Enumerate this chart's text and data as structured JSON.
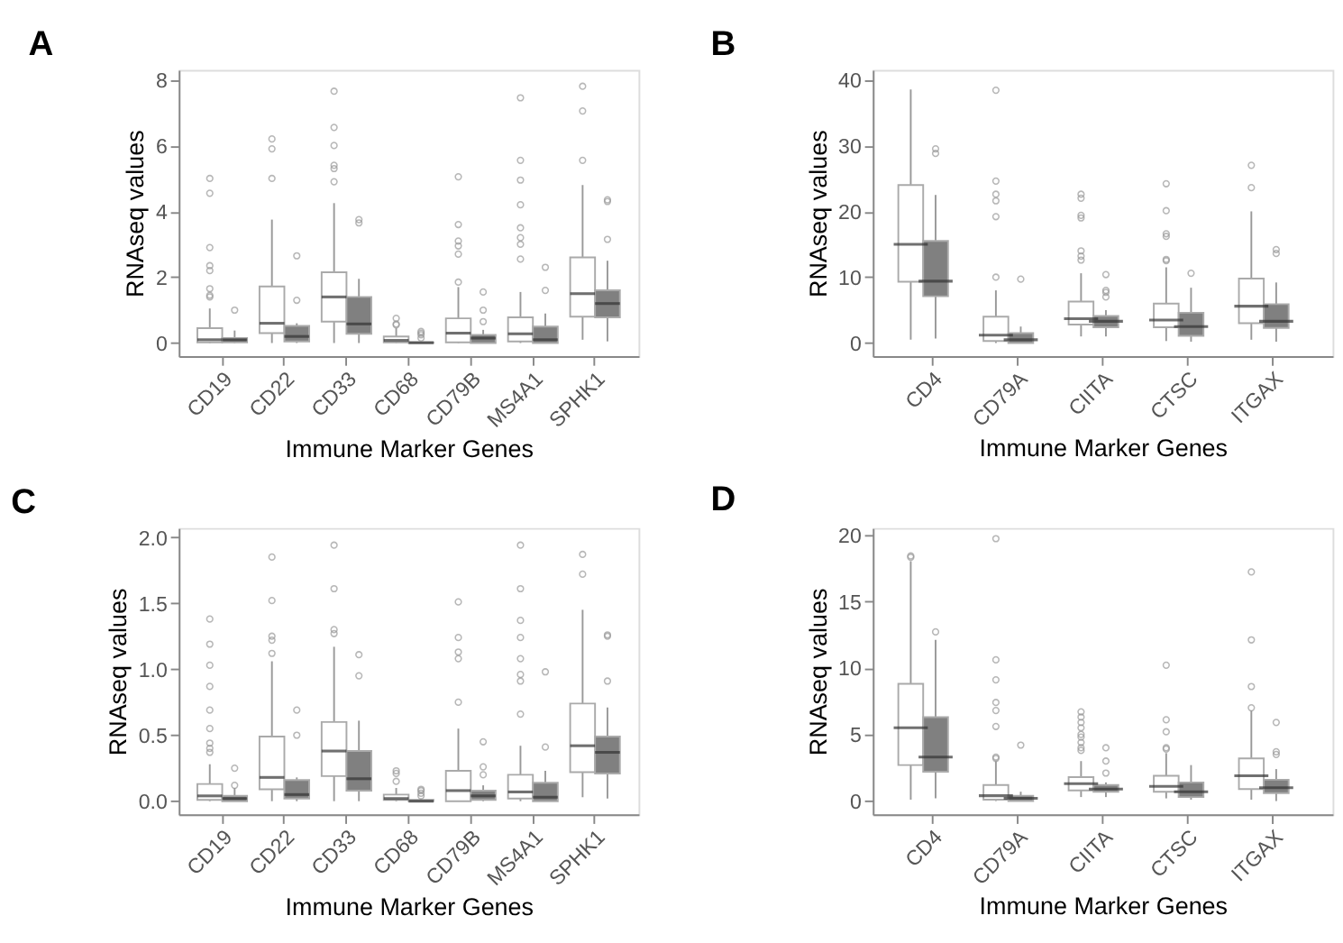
{
  "chart_data": [
    {
      "type": "box",
      "title": "A",
      "xlabel": "Immune Marker Genes",
      "ylabel": "RNAseq values",
      "categories": [
        "CD19",
        "CD22",
        "CD33",
        "CD68",
        "CD79B",
        "MS4A1",
        "SPHK1"
      ],
      "ylim": [
        -0.4,
        8.3
      ],
      "yticks": [
        0,
        2,
        4,
        6,
        8
      ],
      "grid": false,
      "legend": false,
      "series": [
        {
          "color": "#ffffff",
          "boxes": [
            {
              "low": 0,
              "q1": 0.02,
              "median": 0.1,
              "q3": 0.45,
              "high": 1.05,
              "outliers": [
                1.4,
                1.45,
                1.65,
                2.2,
                2.35,
                2.9,
                4.55,
                5.0
              ]
            },
            {
              "low": 0,
              "q1": 0.3,
              "median": 0.6,
              "q3": 1.72,
              "high": 3.75,
              "outliers": [
                5.0,
                5.9,
                6.2
              ]
            },
            {
              "low": 0,
              "q1": 0.65,
              "median": 1.4,
              "q3": 2.15,
              "high": 4.25,
              "outliers": [
                4.9,
                5.3,
                5.4,
                6.0,
                6.55,
                7.65
              ]
            },
            {
              "low": 0,
              "q1": 0.02,
              "median": 0.08,
              "q3": 0.2,
              "high": 0.45,
              "outliers": [
                0.55,
                0.58,
                0.75
              ]
            },
            {
              "low": 0,
              "q1": 0.02,
              "median": 0.3,
              "q3": 0.75,
              "high": 1.7,
              "outliers": [
                1.85,
                2.7,
                2.95,
                3.1,
                3.6,
                5.05
              ]
            },
            {
              "low": 0,
              "q1": 0.05,
              "median": 0.28,
              "q3": 0.78,
              "high": 1.55,
              "outliers": [
                2.55,
                3.0,
                3.2,
                3.5,
                4.2,
                4.95,
                5.55,
                7.45
              ]
            },
            {
              "low": 0.1,
              "q1": 0.8,
              "median": 1.5,
              "q3": 2.6,
              "high": 4.8,
              "outliers": [
                5.55,
                7.05,
                7.8
              ]
            }
          ]
        },
        {
          "color": "#808080",
          "boxes": [
            {
              "low": 0,
              "q1": 0.02,
              "median": 0.1,
              "q3": 0.15,
              "high": 0.38,
              "outliers": [
                1.0
              ]
            },
            {
              "low": 0,
              "q1": 0.05,
              "median": 0.2,
              "q3": 0.52,
              "high": 0.6,
              "outliers": [
                1.3,
                2.65
              ]
            },
            {
              "low": 0,
              "q1": 0.28,
              "median": 0.58,
              "q3": 1.4,
              "high": 1.95,
              "outliers": [
                3.65,
                3.75
              ]
            },
            {
              "low": 0,
              "q1": 0,
              "median": 0.01,
              "q3": 0.02,
              "high": 0.05,
              "outliers": [
                0.15,
                0.25,
                0.3,
                0.35
              ]
            },
            {
              "low": 0,
              "q1": 0,
              "median": 0.15,
              "q3": 0.25,
              "high": 0.4,
              "outliers": [
                0.65,
                1.0,
                1.55
              ]
            },
            {
              "low": 0,
              "q1": 0,
              "median": 0.1,
              "q3": 0.5,
              "high": 0.9,
              "outliers": [
                1.6,
                2.3
              ]
            },
            {
              "low": 0.05,
              "q1": 0.78,
              "median": 1.2,
              "q3": 1.6,
              "high": 2.5,
              "outliers": [
                3.15,
                4.3,
                4.35
              ]
            }
          ]
        }
      ]
    },
    {
      "type": "box",
      "title": "B",
      "xlabel": "Immune Marker Genes",
      "ylabel": "RNAseq values",
      "categories": [
        "CD4",
        "CD79A",
        "CIITA",
        "CTSC",
        "ITGAX"
      ],
      "ylim": [
        -2,
        41.5
      ],
      "yticks": [
        0,
        10,
        20,
        30,
        40
      ],
      "grid": false,
      "legend": false,
      "series": [
        {
          "color": "#ffffff",
          "boxes": [
            {
              "low": 0.5,
              "q1": 9.3,
              "median": 15,
              "q3": 24,
              "high": 38.5
            },
            {
              "low": 0,
              "q1": 0.3,
              "median": 1.2,
              "q3": 4,
              "high": 8,
              "outliers": [
                10,
                19.2,
                21.6,
                22.6,
                24.6,
                38.4
              ]
            },
            {
              "low": 1,
              "q1": 2.8,
              "median": 3.7,
              "q3": 6.3,
              "high": 10.6,
              "outliers": [
                12.6,
                13.2,
                14,
                19,
                19.4,
                22,
                22.6
              ]
            },
            {
              "low": 0.3,
              "q1": 2.4,
              "median": 3.5,
              "q3": 6,
              "high": 11.5,
              "outliers": [
                12.5,
                12.7,
                16.2,
                16.6,
                20.1,
                24.2
              ]
            },
            {
              "low": 0.5,
              "q1": 3,
              "median": 5.6,
              "q3": 9.8,
              "high": 20,
              "outliers": [
                23.6,
                27
              ]
            }
          ]
        },
        {
          "color": "#808080",
          "boxes": [
            {
              "low": 0.7,
              "q1": 7.1,
              "median": 9.4,
              "q3": 15.5,
              "high": 22.5,
              "outliers": [
                28.8,
                29.5
              ]
            },
            {
              "low": 0,
              "q1": 0,
              "median": 0.5,
              "q3": 1.5,
              "high": 2.5,
              "outliers": [
                9.7
              ]
            },
            {
              "low": 1,
              "q1": 2.4,
              "median": 3.3,
              "q3": 4.1,
              "high": 5,
              "outliers": [
                7,
                7.7,
                8,
                10.4
              ]
            },
            {
              "low": 0.2,
              "q1": 1.1,
              "median": 2.5,
              "q3": 4.6,
              "high": 8.4,
              "outliers": [
                10.6
              ]
            },
            {
              "low": 0.2,
              "q1": 2.3,
              "median": 3.3,
              "q3": 5.9,
              "high": 9.2,
              "outliers": [
                13.6,
                14.2
              ]
            }
          ]
        }
      ]
    },
    {
      "type": "box",
      "title": "C",
      "xlabel": "Immune Marker Genes",
      "ylabel": "RNAseq values",
      "categories": [
        "CD19",
        "CD22",
        "CD33",
        "CD68",
        "CD79B",
        "MS4A1",
        "SPHK1"
      ],
      "ylim": [
        -0.1,
        2.07
      ],
      "yticks": [
        {
          "value": 0,
          "label": "0.0"
        },
        {
          "value": 0.5,
          "label": "0.5"
        },
        {
          "value": 1,
          "label": "1.0"
        },
        {
          "value": 1.5,
          "label": "1.5"
        },
        {
          "value": 2,
          "label": "2.0"
        }
      ],
      "grid": false,
      "legend": false,
      "series": [
        {
          "color": "#ffffff",
          "boxes": [
            {
              "low": 0,
              "q1": 0.01,
              "median": 0.04,
              "q3": 0.13,
              "high": 0.28,
              "outliers": [
                0.37,
                0.4,
                0.44,
                0.55,
                0.69,
                0.87,
                1.03,
                1.19,
                1.38
              ]
            },
            {
              "low": 0,
              "q1": 0.09,
              "median": 0.18,
              "q3": 0.49,
              "high": 1.06,
              "outliers": [
                1.12,
                1.22,
                1.25,
                1.52,
                1.85
              ]
            },
            {
              "low": 0,
              "q1": 0.19,
              "median": 0.38,
              "q3": 0.6,
              "high": 1.17,
              "outliers": [
                1.27,
                1.3,
                1.61,
                1.94
              ]
            },
            {
              "low": 0,
              "q1": 0.01,
              "median": 0.02,
              "q3": 0.05,
              "high": 0.1,
              "outliers": [
                0.15,
                0.21,
                0.23
              ]
            },
            {
              "low": 0,
              "q1": 0,
              "median": 0.08,
              "q3": 0.23,
              "high": 0.55,
              "outliers": [
                0.75,
                1.08,
                1.13,
                1.24,
                1.51
              ]
            },
            {
              "low": 0,
              "q1": 0.02,
              "median": 0.07,
              "q3": 0.2,
              "high": 0.42,
              "outliers": [
                0.66,
                0.91,
                0.96,
                1.08,
                1.24,
                1.37,
                1.61,
                1.94
              ]
            },
            {
              "low": 0.03,
              "q1": 0.22,
              "median": 0.42,
              "q3": 0.74,
              "high": 1.45,
              "outliers": [
                1.72,
                1.87
              ]
            }
          ]
        },
        {
          "color": "#808080",
          "boxes": [
            {
              "low": 0,
              "q1": 0,
              "median": 0.02,
              "q3": 0.04,
              "high": 0.1,
              "outliers": [
                0.12,
                0.25
              ]
            },
            {
              "low": 0,
              "q1": 0.02,
              "median": 0.05,
              "q3": 0.16,
              "high": 0.18,
              "outliers": [
                0.5,
                0.69
              ]
            },
            {
              "low": 0,
              "q1": 0.08,
              "median": 0.17,
              "q3": 0.38,
              "high": 0.61,
              "outliers": [
                0.95,
                1.11
              ]
            },
            {
              "low": 0,
              "q1": 0,
              "median": 0,
              "q3": 0.01,
              "high": 0.02,
              "outliers": [
                0.04,
                0.06,
                0.08,
                0.09
              ]
            },
            {
              "low": 0,
              "q1": 0.01,
              "median": 0.04,
              "q3": 0.08,
              "high": 0.12,
              "outliers": [
                0.2,
                0.26,
                0.45
              ]
            },
            {
              "low": 0,
              "q1": 0,
              "median": 0.03,
              "q3": 0.14,
              "high": 0.23,
              "outliers": [
                0.41,
                0.98
              ]
            },
            {
              "low": 0.02,
              "q1": 0.21,
              "median": 0.37,
              "q3": 0.49,
              "high": 0.71,
              "outliers": [
                0.91,
                1.25,
                1.26
              ]
            }
          ]
        }
      ]
    },
    {
      "type": "box",
      "title": "D",
      "xlabel": "Immune Marker Genes",
      "ylabel": "RNAseq values",
      "categories": [
        "CD4",
        "CD79A",
        "CIITA",
        "CTSC",
        "ITGAX"
      ],
      "ylim": [
        -1,
        20.5
      ],
      "yticks": [
        0,
        5,
        10,
        15,
        20
      ],
      "grid": false,
      "legend": false,
      "series": [
        {
          "color": "#ffffff",
          "boxes": [
            {
              "low": 0.1,
              "q1": 2.7,
              "median": 5.5,
              "q3": 8.8,
              "high": 18,
              "outliers": [
                18.3,
                18.4
              ]
            },
            {
              "low": 0,
              "q1": 0.1,
              "median": 0.4,
              "q3": 1.2,
              "high": 3,
              "outliers": [
                3.2,
                3.3,
                5.6,
                6.8,
                7.4,
                9.1,
                10.6,
                19.7
              ]
            },
            {
              "low": 0.3,
              "q1": 0.8,
              "median": 1.3,
              "q3": 1.8,
              "high": 3,
              "outliers": [
                3.8,
                4.0,
                4.4,
                4.8,
                5.0,
                5.5,
                5.9,
                6.3,
                6.7
              ]
            },
            {
              "low": 0.2,
              "q1": 0.7,
              "median": 1.1,
              "q3": 1.9,
              "high": 3.6,
              "outliers": [
                3.9,
                4.0,
                5.2,
                6.1,
                10.2
              ]
            },
            {
              "low": 0.1,
              "q1": 0.9,
              "median": 1.9,
              "q3": 3.2,
              "high": 6.8,
              "outliers": [
                7,
                8.6,
                12.1,
                17.2
              ]
            }
          ]
        },
        {
          "color": "#808080",
          "boxes": [
            {
              "low": 0.2,
              "q1": 2.2,
              "median": 3.3,
              "q3": 6.3,
              "high": 12.1,
              "outliers": [
                12.7
              ]
            },
            {
              "low": 0,
              "q1": 0,
              "median": 0.2,
              "q3": 0.4,
              "high": 0.7,
              "outliers": [
                4.2
              ]
            },
            {
              "low": 0.3,
              "q1": 0.7,
              "median": 0.9,
              "q3": 1.2,
              "high": 1.4,
              "outliers": [
                2.1,
                3.0,
                4.0
              ]
            },
            {
              "low": 0.1,
              "q1": 0.3,
              "median": 0.7,
              "q3": 1.4,
              "high": 2.7
            },
            {
              "low": 0,
              "q1": 0.6,
              "median": 1.0,
              "q3": 1.6,
              "high": 2.4,
              "outliers": [
                3.5,
                3.7,
                5.9
              ]
            }
          ]
        }
      ]
    }
  ]
}
